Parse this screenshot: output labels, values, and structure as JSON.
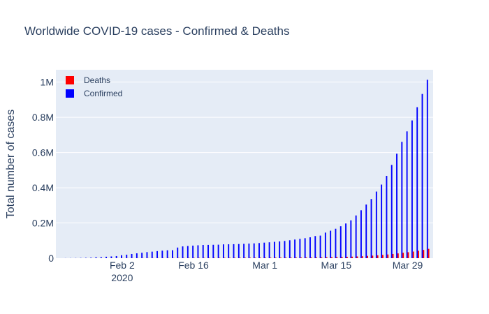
{
  "chart_data": {
    "type": "bar",
    "title": "Worldwide COVID-19 cases - Confirmed & Deaths",
    "xlabel": "",
    "ylabel": "Total number of cases",
    "x_start_date": "2020-01-22",
    "x_end_date": "2020-04-02",
    "x_range": [
      "2020-01-20",
      "2020-04-03"
    ],
    "ylim": [
      0,
      1070000
    ],
    "x_ticks": [
      {
        "date": "2020-02-02",
        "label": "Feb 2",
        "sublabel": "2020"
      },
      {
        "date": "2020-02-16",
        "label": "Feb 16",
        "sublabel": ""
      },
      {
        "date": "2020-03-01",
        "label": "Mar 1",
        "sublabel": ""
      },
      {
        "date": "2020-03-15",
        "label": "Mar 15",
        "sublabel": ""
      },
      {
        "date": "2020-03-29",
        "label": "Mar 29",
        "sublabel": ""
      }
    ],
    "y_ticks": [
      {
        "value": 0,
        "label": "0"
      },
      {
        "value": 200000,
        "label": "0.2M"
      },
      {
        "value": 400000,
        "label": "0.4M"
      },
      {
        "value": 600000,
        "label": "0.6M"
      },
      {
        "value": 800000,
        "label": "0.8M"
      },
      {
        "value": 1000000,
        "label": "1M"
      }
    ],
    "grid": true,
    "legend_position": "top-left",
    "series": [
      {
        "name": "Deaths",
        "color": "#ff0000",
        "values": [
          17,
          18,
          26,
          42,
          56,
          82,
          131,
          133,
          171,
          213,
          259,
          362,
          426,
          492,
          564,
          634,
          719,
          806,
          906,
          1013,
          1113,
          1118,
          1371,
          1523,
          1666,
          1770,
          1868,
          2007,
          2122,
          2247,
          2251,
          2458,
          2469,
          2629,
          2708,
          2770,
          2814,
          2872,
          2941,
          2996,
          3085,
          3160,
          3254,
          3348,
          3460,
          3558,
          3802,
          3988,
          4262,
          4615,
          4720,
          5404,
          5819,
          6440,
          7126,
          7905,
          8733,
          9867,
          11299,
          12973,
          14623,
          16497,
          18615,
          21181,
          23970,
          27198,
          30652,
          33925,
          37582,
          42107,
          46809,
          52983
        ]
      },
      {
        "name": "Confirmed",
        "color": "#0000ff",
        "values": [
          555,
          654,
          941,
          1434,
          2118,
          2927,
          5578,
          6166,
          8234,
          9927,
          12038,
          16787,
          19881,
          23892,
          27635,
          30794,
          34391,
          37120,
          40150,
          42762,
          44802,
          45221,
          60368,
          66885,
          69030,
          71224,
          73258,
          75136,
          75639,
          76197,
          76819,
          78572,
          78958,
          79561,
          80406,
          81388,
          82746,
          84112,
          86011,
          88369,
          90306,
          92840,
          95120,
          97886,
          101801,
          105847,
          109821,
          113590,
          118620,
          125875,
          128343,
          145193,
          156097,
          167449,
          181546,
          197168,
          214915,
          242713,
          272167,
          304528,
          335955,
          378287,
          417966,
          467594,
          529591,
          593291,
          660706,
          720117,
          782365,
          857487,
          932605,
          1013157
        ]
      }
    ]
  }
}
